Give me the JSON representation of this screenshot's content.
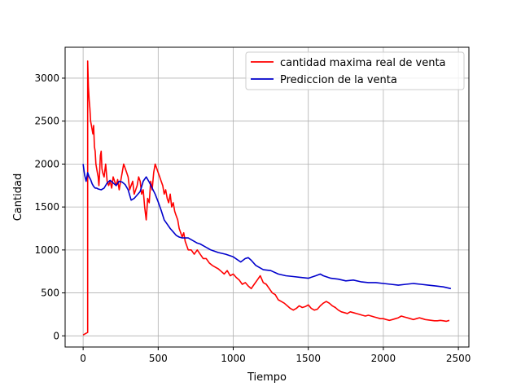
{
  "chart_data": {
    "type": "line",
    "xlabel": "Tiempo",
    "ylabel": "Cantidad",
    "xlim": [
      -120,
      2570
    ],
    "ylim": [
      -130,
      3360
    ],
    "xticks": [
      0,
      500,
      1000,
      1500,
      2000,
      2500
    ],
    "yticks": [
      0,
      500,
      1000,
      1500,
      2000,
      2500,
      3000
    ],
    "grid": true,
    "legend_position": "top-right",
    "series": [
      {
        "name": "cantidad maxima real de venta",
        "color": "#ff0000",
        "x": [
          0,
          30,
          30,
          35,
          40,
          45,
          50,
          55,
          60,
          65,
          70,
          75,
          80,
          85,
          90,
          95,
          100,
          105,
          110,
          115,
          120,
          125,
          130,
          140,
          150,
          160,
          170,
          180,
          190,
          200,
          210,
          220,
          230,
          240,
          250,
          260,
          270,
          280,
          290,
          300,
          310,
          320,
          330,
          340,
          350,
          360,
          370,
          380,
          390,
          400,
          410,
          420,
          430,
          440,
          450,
          460,
          470,
          480,
          490,
          500,
          510,
          520,
          530,
          540,
          550,
          560,
          570,
          580,
          590,
          600,
          610,
          620,
          630,
          640,
          650,
          660,
          670,
          680,
          690,
          700,
          720,
          740,
          760,
          780,
          800,
          820,
          840,
          860,
          880,
          900,
          920,
          940,
          960,
          980,
          1000,
          1020,
          1040,
          1060,
          1080,
          1100,
          1120,
          1140,
          1160,
          1180,
          1200,
          1220,
          1240,
          1260,
          1280,
          1300,
          1320,
          1340,
          1360,
          1380,
          1400,
          1420,
          1440,
          1460,
          1480,
          1500,
          1520,
          1540,
          1560,
          1580,
          1600,
          1620,
          1640,
          1660,
          1680,
          1700,
          1720,
          1740,
          1760,
          1780,
          1800,
          1820,
          1840,
          1860,
          1880,
          1900,
          1920,
          1940,
          1960,
          1980,
          2000,
          2020,
          2040,
          2060,
          2080,
          2100,
          2120,
          2140,
          2160,
          2180,
          2200,
          2220,
          2240,
          2260,
          2280,
          2300,
          2320,
          2340,
          2360,
          2380,
          2400,
          2420,
          2440
        ],
        "y": [
          10,
          40,
          3200,
          2900,
          2750,
          2650,
          2500,
          2450,
          2400,
          2350,
          2450,
          2200,
          2150,
          2000,
          1950,
          1900,
          1850,
          1750,
          1900,
          2100,
          2150,
          1950,
          1900,
          1850,
          2000,
          1800,
          1750,
          1800,
          1720,
          1850,
          1800,
          1750,
          1820,
          1700,
          1800,
          1900,
          2000,
          1950,
          1900,
          1850,
          1700,
          1750,
          1800,
          1650,
          1700,
          1750,
          1850,
          1800,
          1650,
          1700,
          1500,
          1350,
          1600,
          1550,
          1800,
          1700,
          1900,
          2000,
          1950,
          1900,
          1850,
          1800,
          1750,
          1650,
          1700,
          1600,
          1550,
          1650,
          1500,
          1550,
          1450,
          1400,
          1350,
          1250,
          1200,
          1150,
          1200,
          1100,
          1050,
          1000,
          1000,
          950,
          1000,
          950,
          900,
          900,
          850,
          820,
          800,
          780,
          750,
          720,
          760,
          700,
          720,
          680,
          650,
          600,
          620,
          580,
          550,
          600,
          650,
          700,
          620,
          600,
          550,
          500,
          480,
          420,
          400,
          380,
          350,
          320,
          300,
          320,
          350,
          330,
          340,
          360,
          320,
          300,
          310,
          350,
          380,
          400,
          380,
          350,
          330,
          300,
          280,
          270,
          260,
          280,
          270,
          260,
          250,
          240,
          230,
          240,
          230,
          220,
          210,
          200,
          200,
          190,
          180,
          190,
          200,
          210,
          230,
          220,
          210,
          200,
          190,
          200,
          210,
          200,
          190,
          185,
          180,
          175,
          175,
          180,
          175,
          170,
          180
        ]
      },
      {
        "name": "Prediccion de la venta",
        "color": "#0000cc",
        "x": [
          0,
          10,
          20,
          30,
          40,
          50,
          60,
          70,
          80,
          90,
          100,
          120,
          140,
          160,
          180,
          200,
          220,
          240,
          260,
          280,
          300,
          320,
          340,
          360,
          380,
          400,
          420,
          440,
          460,
          480,
          500,
          520,
          540,
          560,
          580,
          600,
          620,
          640,
          660,
          680,
          700,
          720,
          740,
          760,
          780,
          800,
          850,
          900,
          950,
          1000,
          1050,
          1080,
          1100,
          1120,
          1150,
          1200,
          1250,
          1300,
          1350,
          1400,
          1450,
          1500,
          1550,
          1580,
          1600,
          1650,
          1700,
          1750,
          1800,
          1850,
          1900,
          1950,
          2000,
          2050,
          2100,
          2150,
          2200,
          2250,
          2300,
          2350,
          2400,
          2450
        ],
        "y": [
          2000,
          1870,
          1800,
          1900,
          1850,
          1820,
          1770,
          1740,
          1720,
          1720,
          1710,
          1700,
          1720,
          1780,
          1810,
          1780,
          1750,
          1800,
          1790,
          1760,
          1700,
          1580,
          1600,
          1640,
          1680,
          1800,
          1850,
          1790,
          1720,
          1650,
          1560,
          1460,
          1350,
          1300,
          1250,
          1210,
          1170,
          1150,
          1140,
          1140,
          1140,
          1120,
          1100,
          1080,
          1070,
          1050,
          1000,
          970,
          950,
          920,
          860,
          900,
          910,
          880,
          820,
          770,
          760,
          720,
          700,
          690,
          680,
          670,
          700,
          720,
          700,
          670,
          660,
          640,
          650,
          630,
          620,
          620,
          610,
          600,
          590,
          600,
          610,
          600,
          590,
          580,
          570,
          550
        ]
      }
    ]
  }
}
